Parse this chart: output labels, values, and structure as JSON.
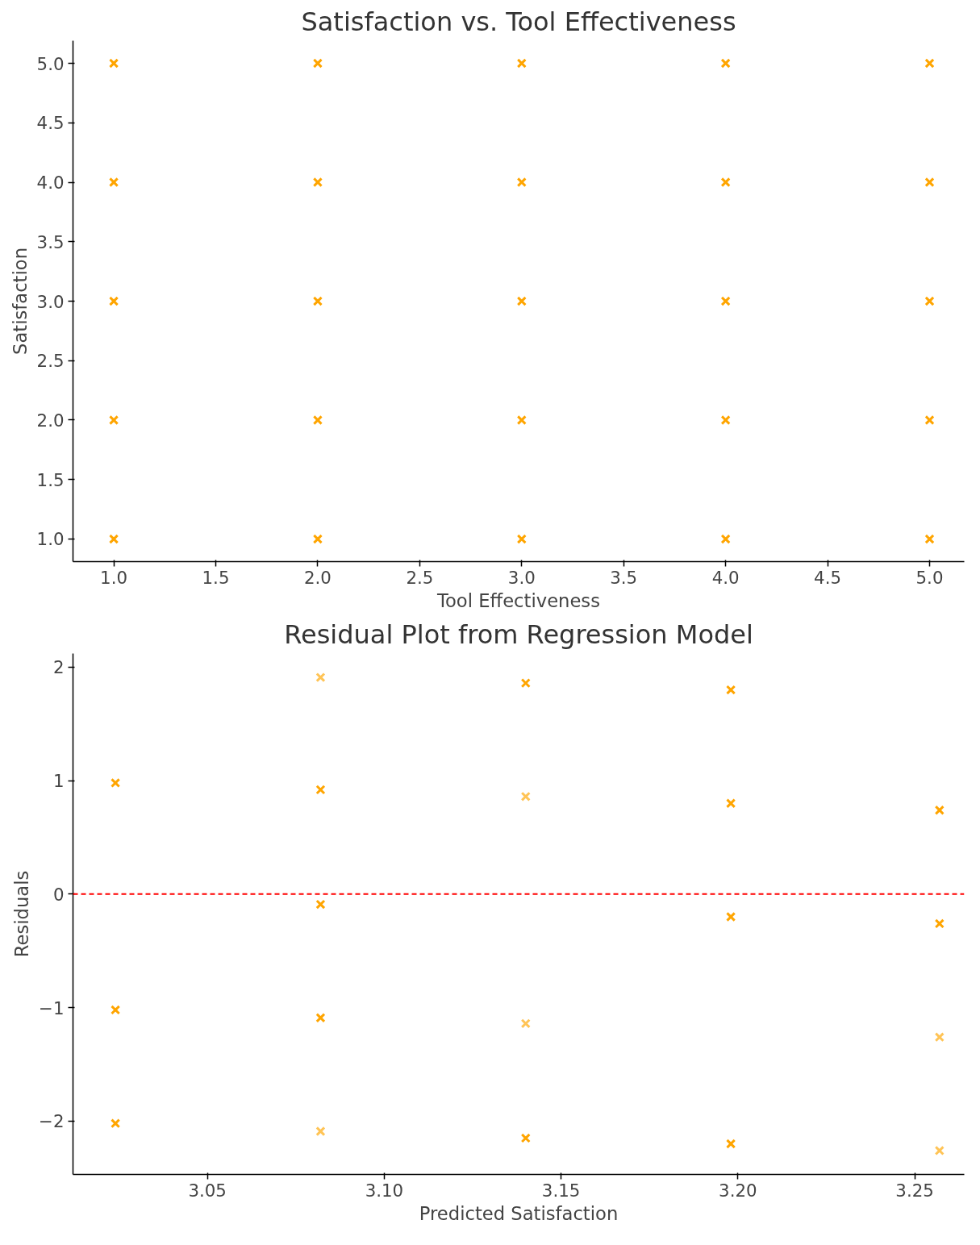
{
  "chart_data": [
    {
      "type": "scatter",
      "title": "Satisfaction vs. Tool Effectiveness",
      "xlabel": "Tool Effectiveness",
      "ylabel": "Satisfaction",
      "marker": "cross",
      "grid": false,
      "x": [
        1,
        1,
        1,
        1,
        1,
        2,
        2,
        2,
        2,
        2,
        3,
        3,
        3,
        3,
        3,
        4,
        4,
        4,
        4,
        4,
        5,
        5,
        5,
        5,
        5
      ],
      "values": [
        5,
        4,
        3,
        2,
        1,
        5,
        4,
        3,
        2,
        1,
        5,
        4,
        3,
        2,
        1,
        5,
        4,
        3,
        2,
        1,
        5,
        4,
        3,
        2,
        1
      ],
      "color": "#ffa500",
      "xlim": [
        0.8,
        5.17
      ],
      "ylim": [
        0.81,
        5.19
      ],
      "xticks": [
        {
          "value": 1,
          "label": "1.0"
        },
        1.5,
        {
          "value": 2,
          "label": "2.0"
        },
        2.5,
        {
          "value": 3,
          "label": "3.0"
        },
        3.5,
        {
          "value": 4,
          "label": "4.0"
        },
        4.5,
        {
          "value": 5,
          "label": "5.0"
        }
      ],
      "yticks": [
        {
          "value": 1,
          "label": "1.0"
        },
        1.5,
        {
          "value": 2,
          "label": "2.0"
        },
        2.5,
        {
          "value": 3,
          "label": "3.0"
        },
        3.5,
        {
          "value": 4,
          "label": "4.0"
        },
        4.5,
        {
          "value": 5,
          "label": "5.0"
        }
      ]
    },
    {
      "type": "scatter",
      "title": "Residual Plot from Regression Model",
      "xlabel": "Predicted Satisfaction",
      "ylabel": "Residuals",
      "marker": "cross",
      "grid": false,
      "x": [
        3.024,
        3.024,
        3.024,
        3.082,
        3.082,
        3.082,
        3.082,
        3.082,
        3.14,
        3.14,
        3.14,
        3.14,
        3.198,
        3.198,
        3.198,
        3.198,
        3.257,
        3.257,
        3.257,
        3.257
      ],
      "values": [
        0.98,
        -1.02,
        -2.02,
        1.91,
        0.92,
        -0.09,
        -1.09,
        -2.09,
        1.86,
        0.86,
        -1.14,
        -2.15,
        1.8,
        0.8,
        -0.2,
        -2.2,
        0.74,
        -0.26,
        -1.26,
        -2.26
      ],
      "colors": [
        "#ffa500",
        "#ffa500",
        "#ffa500",
        "#ffc456",
        "#ffa500",
        "#ffa500",
        "#ffa500",
        "#ffc456",
        "#ffa500",
        "#ffc456",
        "#ffc456",
        "#ffa500",
        "#ffa500",
        "#ffa500",
        "#ffa500",
        "#ffa500",
        "#ffa500",
        "#ffa500",
        "#ffc456",
        "#ffc456"
      ],
      "xlim": [
        3.012,
        3.264
      ],
      "ylim": [
        -2.47,
        2.12
      ],
      "xticks": [
        {
          "value": 3.05,
          "label": "3.05"
        },
        {
          "value": 3.1,
          "label": "3.10"
        },
        {
          "value": 3.15,
          "label": "3.15"
        },
        {
          "value": 3.2,
          "label": "3.20"
        },
        {
          "value": 3.25,
          "label": "3.25"
        }
      ],
      "yticks": [
        {
          "value": -2,
          "label": "−2"
        },
        {
          "value": -1,
          "label": "−1"
        },
        0,
        1,
        2
      ],
      "ref_lines": [
        {
          "axis": "y",
          "value": 0,
          "color": "#ff0000",
          "line_style": "dashed"
        }
      ]
    }
  ]
}
